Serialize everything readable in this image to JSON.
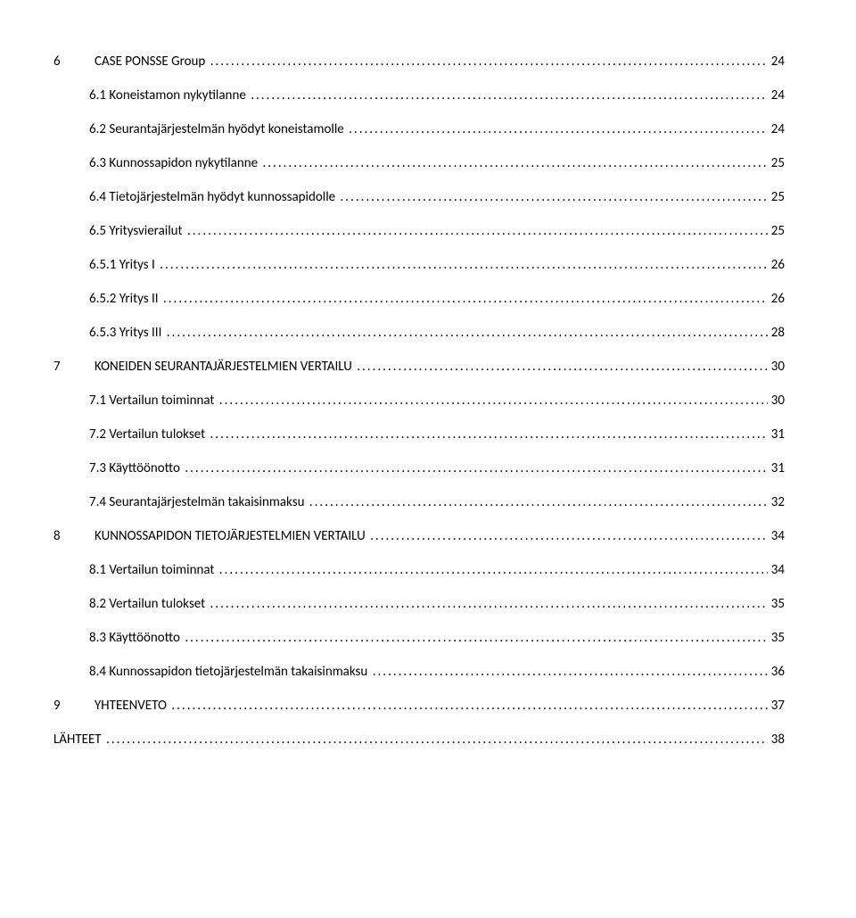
{
  "toc": [
    {
      "level": 0,
      "num": "6",
      "title": "CASE PONSSE Group",
      "page": "24"
    },
    {
      "level": 1,
      "num": "6.1",
      "title": "Koneistamon nykytilanne",
      "page": "24"
    },
    {
      "level": 1,
      "num": "6.2",
      "title": "Seurantajärjestelmän hyödyt koneistamolle",
      "page": "24"
    },
    {
      "level": 1,
      "num": "6.3",
      "title": "Kunnossapidon nykytilanne",
      "page": "25"
    },
    {
      "level": 1,
      "num": "6.4",
      "title": "Tietojärjestelmän hyödyt kunnossapidolle",
      "page": "25"
    },
    {
      "level": 1,
      "num": "6.5",
      "title": "Yritysvierailut",
      "page": "25"
    },
    {
      "level": 2,
      "num": "6.5.1",
      "title": "Yritys I",
      "page": "26"
    },
    {
      "level": 2,
      "num": "6.5.2",
      "title": "Yritys II",
      "page": "26"
    },
    {
      "level": 2,
      "num": "6.5.3",
      "title": "Yritys III",
      "page": "28"
    },
    {
      "level": 0,
      "num": "7",
      "title": "KONEIDEN SEURANTAJÄRJESTELMIEN VERTAILU",
      "page": "30"
    },
    {
      "level": 1,
      "num": "7.1",
      "title": "Vertailun toiminnat",
      "page": "30"
    },
    {
      "level": 1,
      "num": "7.2",
      "title": "Vertailun tulokset",
      "page": "31"
    },
    {
      "level": 1,
      "num": "7.3",
      "title": "Käyttöönotto",
      "page": "31"
    },
    {
      "level": 1,
      "num": "7.4",
      "title": "Seurantajärjestelmän takaisinmaksu",
      "page": "32"
    },
    {
      "level": 0,
      "num": "8",
      "title": "KUNNOSSAPIDON TIETOJÄRJESTELMIEN VERTAILU",
      "page": "34"
    },
    {
      "level": 1,
      "num": "8.1",
      "title": "Vertailun toiminnat",
      "page": "34"
    },
    {
      "level": 1,
      "num": "8.2",
      "title": "Vertailun tulokset",
      "page": "35"
    },
    {
      "level": 1,
      "num": "8.3",
      "title": "Käyttöönotto",
      "page": "35"
    },
    {
      "level": 1,
      "num": "8.4",
      "title": "Kunnossapidon tietojärjestelmän takaisinmaksu",
      "page": "36"
    },
    {
      "level": 0,
      "num": "9",
      "title": "YHTEENVETO",
      "page": "37"
    },
    {
      "level": -1,
      "num": "",
      "title": "LÄHTEET",
      "page": "38"
    }
  ],
  "style": {
    "font_family": "Calibri, 'Segoe UI', Arial, sans-serif",
    "font_size_pt": 11,
    "text_color": "#000000",
    "background_color": "#ffffff",
    "leader_char": "."
  }
}
